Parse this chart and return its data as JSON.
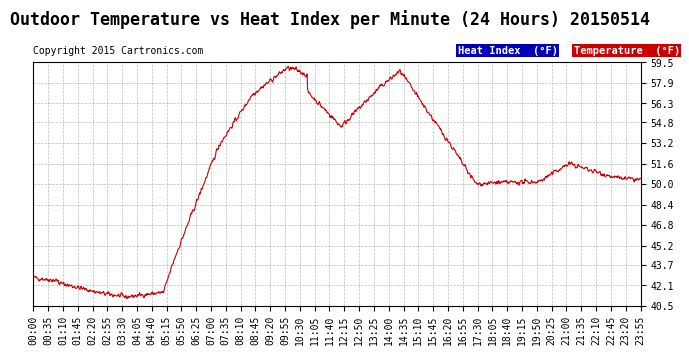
{
  "title": "Outdoor Temperature vs Heat Index per Minute (24 Hours) 20150514",
  "copyright": "Copyright 2015 Cartronics.com",
  "line_color": "#cc0000",
  "background_color": "#ffffff",
  "plot_bg_color": "#ffffff",
  "grid_color": "#aaaaaa",
  "ylim": [
    40.5,
    59.5
  ],
  "yticks": [
    40.5,
    42.1,
    43.7,
    45.2,
    46.8,
    48.4,
    50.0,
    51.6,
    53.2,
    54.8,
    56.3,
    57.9,
    59.5
  ],
  "legend_heat_index_bg": "#0000bb",
  "legend_heat_index_fg": "#ffffff",
  "legend_temp_bg": "#cc0000",
  "legend_temp_fg": "#ffffff",
  "legend_heat_index_label": "Heat Index  (°F)",
  "legend_temp_label": "Temperature  (°F)",
  "title_fontsize": 12,
  "copyright_fontsize": 7,
  "tick_fontsize": 7,
  "legend_fontsize": 7.5,
  "xtick_labels": [
    "00:00",
    "00:35",
    "01:10",
    "01:45",
    "02:20",
    "02:55",
    "03:30",
    "04:05",
    "04:40",
    "05:15",
    "05:50",
    "06:25",
    "07:00",
    "07:35",
    "08:10",
    "08:45",
    "09:20",
    "09:55",
    "10:30",
    "11:05",
    "11:40",
    "12:15",
    "12:50",
    "13:25",
    "14:00",
    "14:35",
    "15:10",
    "15:45",
    "16:20",
    "16:55",
    "17:30",
    "18:05",
    "18:40",
    "19:15",
    "19:50",
    "20:25",
    "21:00",
    "21:35",
    "22:10",
    "22:45",
    "23:20",
    "23:55"
  ],
  "num_minutes": 1440,
  "seed": 42
}
